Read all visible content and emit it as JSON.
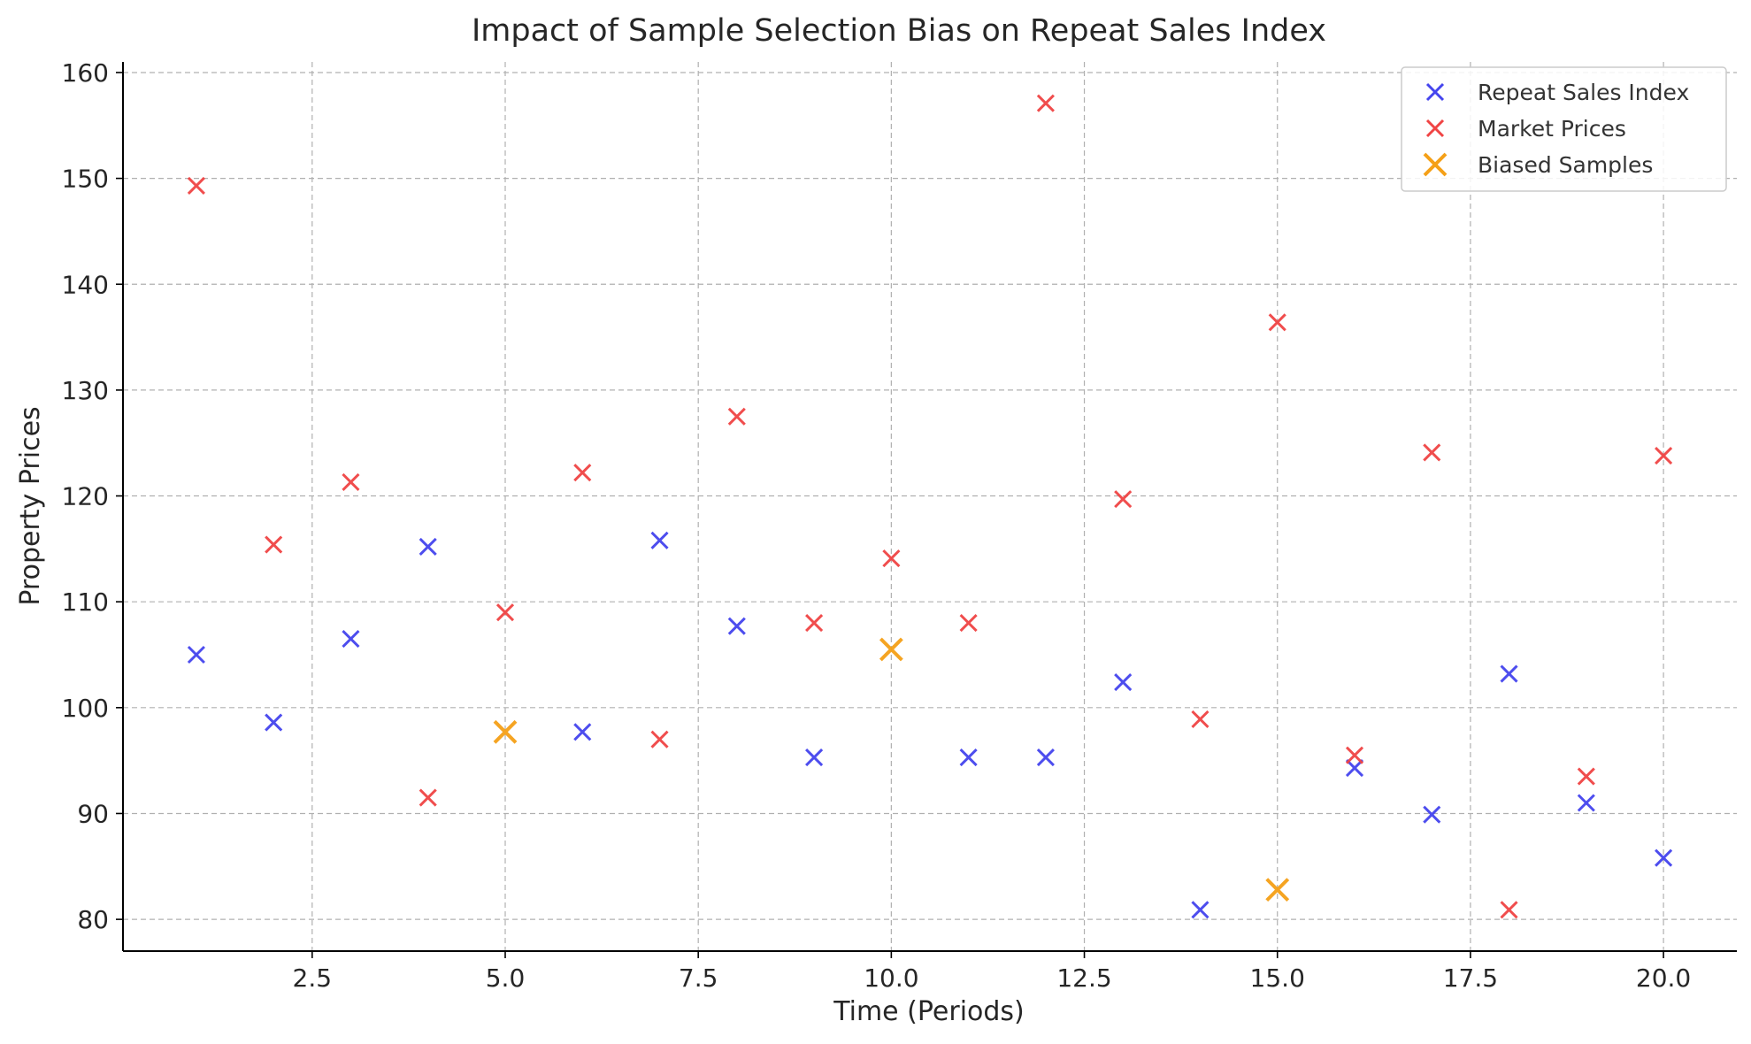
{
  "chart_data": {
    "type": "scatter",
    "title": "Impact of Sample Selection Bias on Repeat Sales Index",
    "xlabel": "Time (Periods)",
    "ylabel": "Property Prices",
    "xlim": [
      0.05,
      20.95
    ],
    "ylim": [
      77,
      161
    ],
    "xticks": [
      2.5,
      5.0,
      7.5,
      10.0,
      12.5,
      15.0,
      17.5,
      20.0
    ],
    "xtick_labels": [
      "2.5",
      "5.0",
      "7.5",
      "10.0",
      "12.5",
      "15.0",
      "17.5",
      "20.0"
    ],
    "yticks": [
      80,
      90,
      100,
      110,
      120,
      130,
      140,
      150,
      160
    ],
    "ytick_labels": [
      "80",
      "90",
      "100",
      "110",
      "120",
      "130",
      "140",
      "150",
      "160"
    ],
    "grid": true,
    "legend_position": "top-right",
    "marker": "x",
    "series": [
      {
        "name": "Repeat Sales Index",
        "color": "#4444ee",
        "x": [
          1,
          2,
          3,
          4,
          6,
          7,
          8,
          9,
          11,
          12,
          13,
          14,
          16,
          17,
          18,
          19,
          20
        ],
        "y": [
          105.0,
          98.6,
          106.5,
          115.2,
          97.7,
          115.8,
          107.7,
          95.3,
          95.3,
          95.3,
          102.4,
          80.9,
          94.3,
          89.9,
          103.2,
          91.0,
          85.8
        ]
      },
      {
        "name": "Market Prices",
        "color": "#f04444",
        "x": [
          1,
          2,
          3,
          4,
          5,
          6,
          7,
          8,
          9,
          10,
          11,
          12,
          13,
          14,
          15,
          16,
          17,
          18,
          19,
          20
        ],
        "y": [
          149.3,
          115.4,
          121.3,
          91.5,
          109.0,
          122.2,
          97.0,
          127.5,
          108.0,
          114.1,
          108.0,
          157.1,
          119.7,
          98.9,
          136.4,
          95.5,
          124.1,
          80.9,
          93.5,
          123.8
        ]
      },
      {
        "name": "Biased Samples",
        "color": "#f5a017",
        "x": [
          5,
          10,
          15
        ],
        "y": [
          97.7,
          105.5,
          82.8
        ]
      }
    ]
  }
}
